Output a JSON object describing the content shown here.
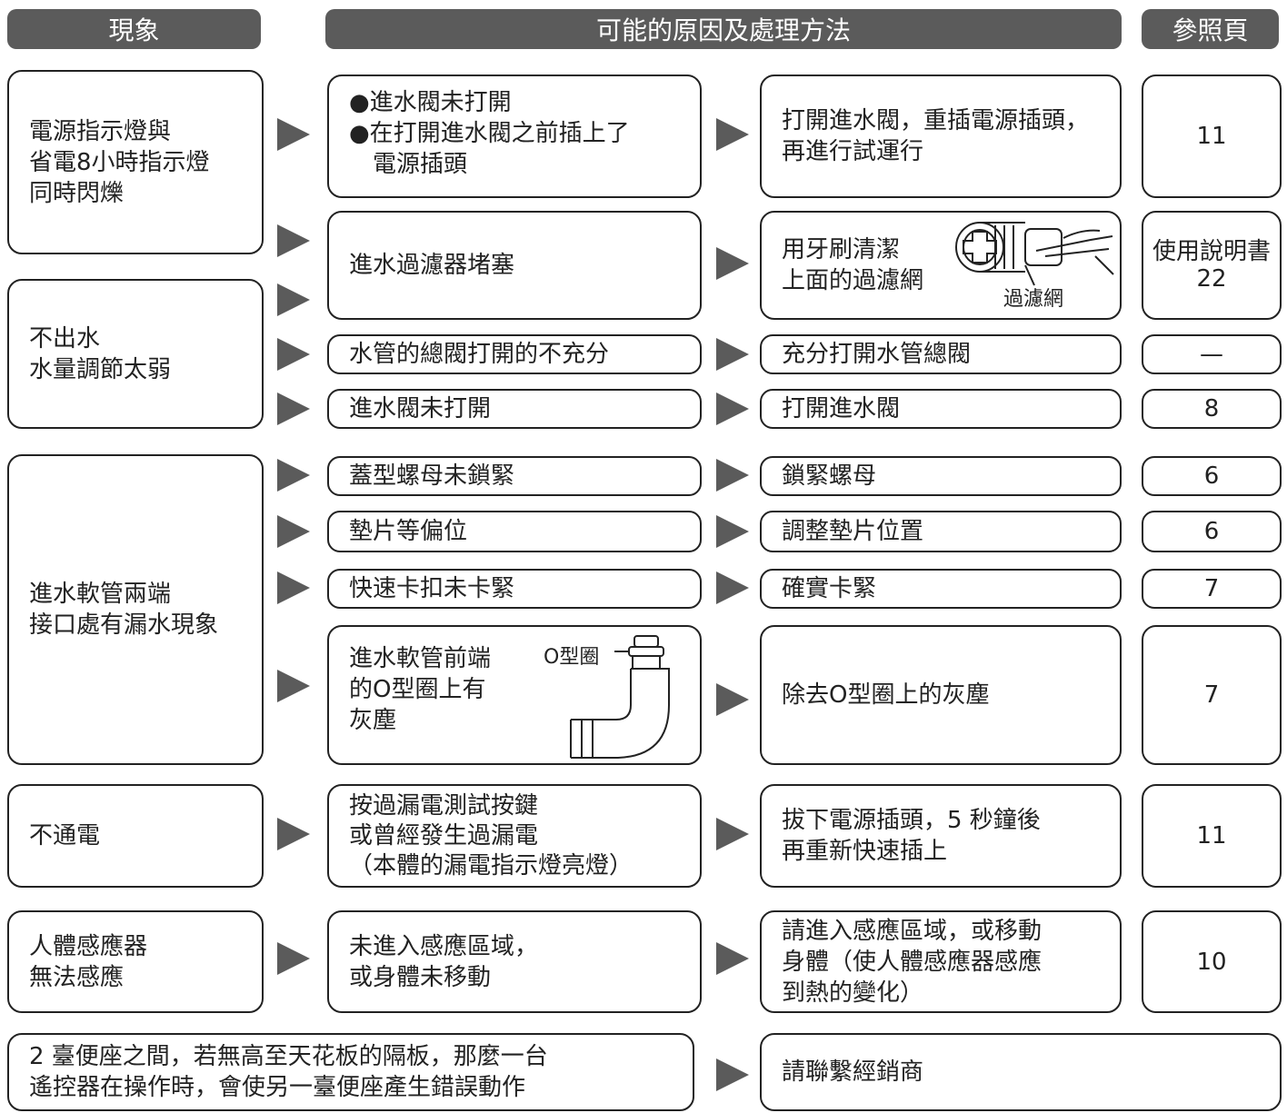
{
  "header": {
    "symptom": "現象",
    "cause": "可能的原因及處理方法",
    "page": "參照頁"
  },
  "symptoms": [
    "電源指示燈與\n省電8小時指示燈\n同時閃爍",
    "不出水\n水量調節太弱",
    "進水軟管兩端\n接口處有漏水現象",
    "不通電",
    "人體感應器\n無法感應",
    "2 臺便座之間，若無高至天花板的隔板，那麼一台\n遙控器在操作時，會使另一臺便座產生錯誤動作"
  ],
  "causes": [
    "●進水閥未打開\n●在打開進水閥之前插上了\n　電源插頭",
    "進水過濾器堵塞",
    "水管的總閥打開的不充分",
    "進水閥未打開",
    "蓋型螺母未鎖緊",
    "墊片等偏位",
    "快速卡扣未卡緊",
    "進水軟管前端\n的O型圈上有\n灰塵",
    "按過漏電測試按鍵\n或曾經發生過漏電\n（本體的漏電指示燈亮燈）",
    "未進入感應區域，\n或身體未移動"
  ],
  "remedies": [
    "打開進水閥，重插電源插頭，\n再進行試運行",
    "用牙刷清潔\n上面的過濾網",
    "充分打開水管總閥",
    "打開進水閥",
    "鎖緊螺母",
    "調整墊片位置",
    "確實卡緊",
    "除去O型圈上的灰塵",
    "拔下電源插頭，5 秒鐘後\n再重新快速插上",
    "請進入感應區域，或移動\n身體（使人體感應器感應\n到熱的變化）",
    "請聯繫經銷商"
  ],
  "pages": [
    "11",
    "使用說明書\n22",
    "—",
    "8",
    "6",
    "6",
    "7",
    "7",
    "11",
    "10"
  ],
  "labels": {
    "filter": "過濾網",
    "o_ring": "O型圈"
  }
}
